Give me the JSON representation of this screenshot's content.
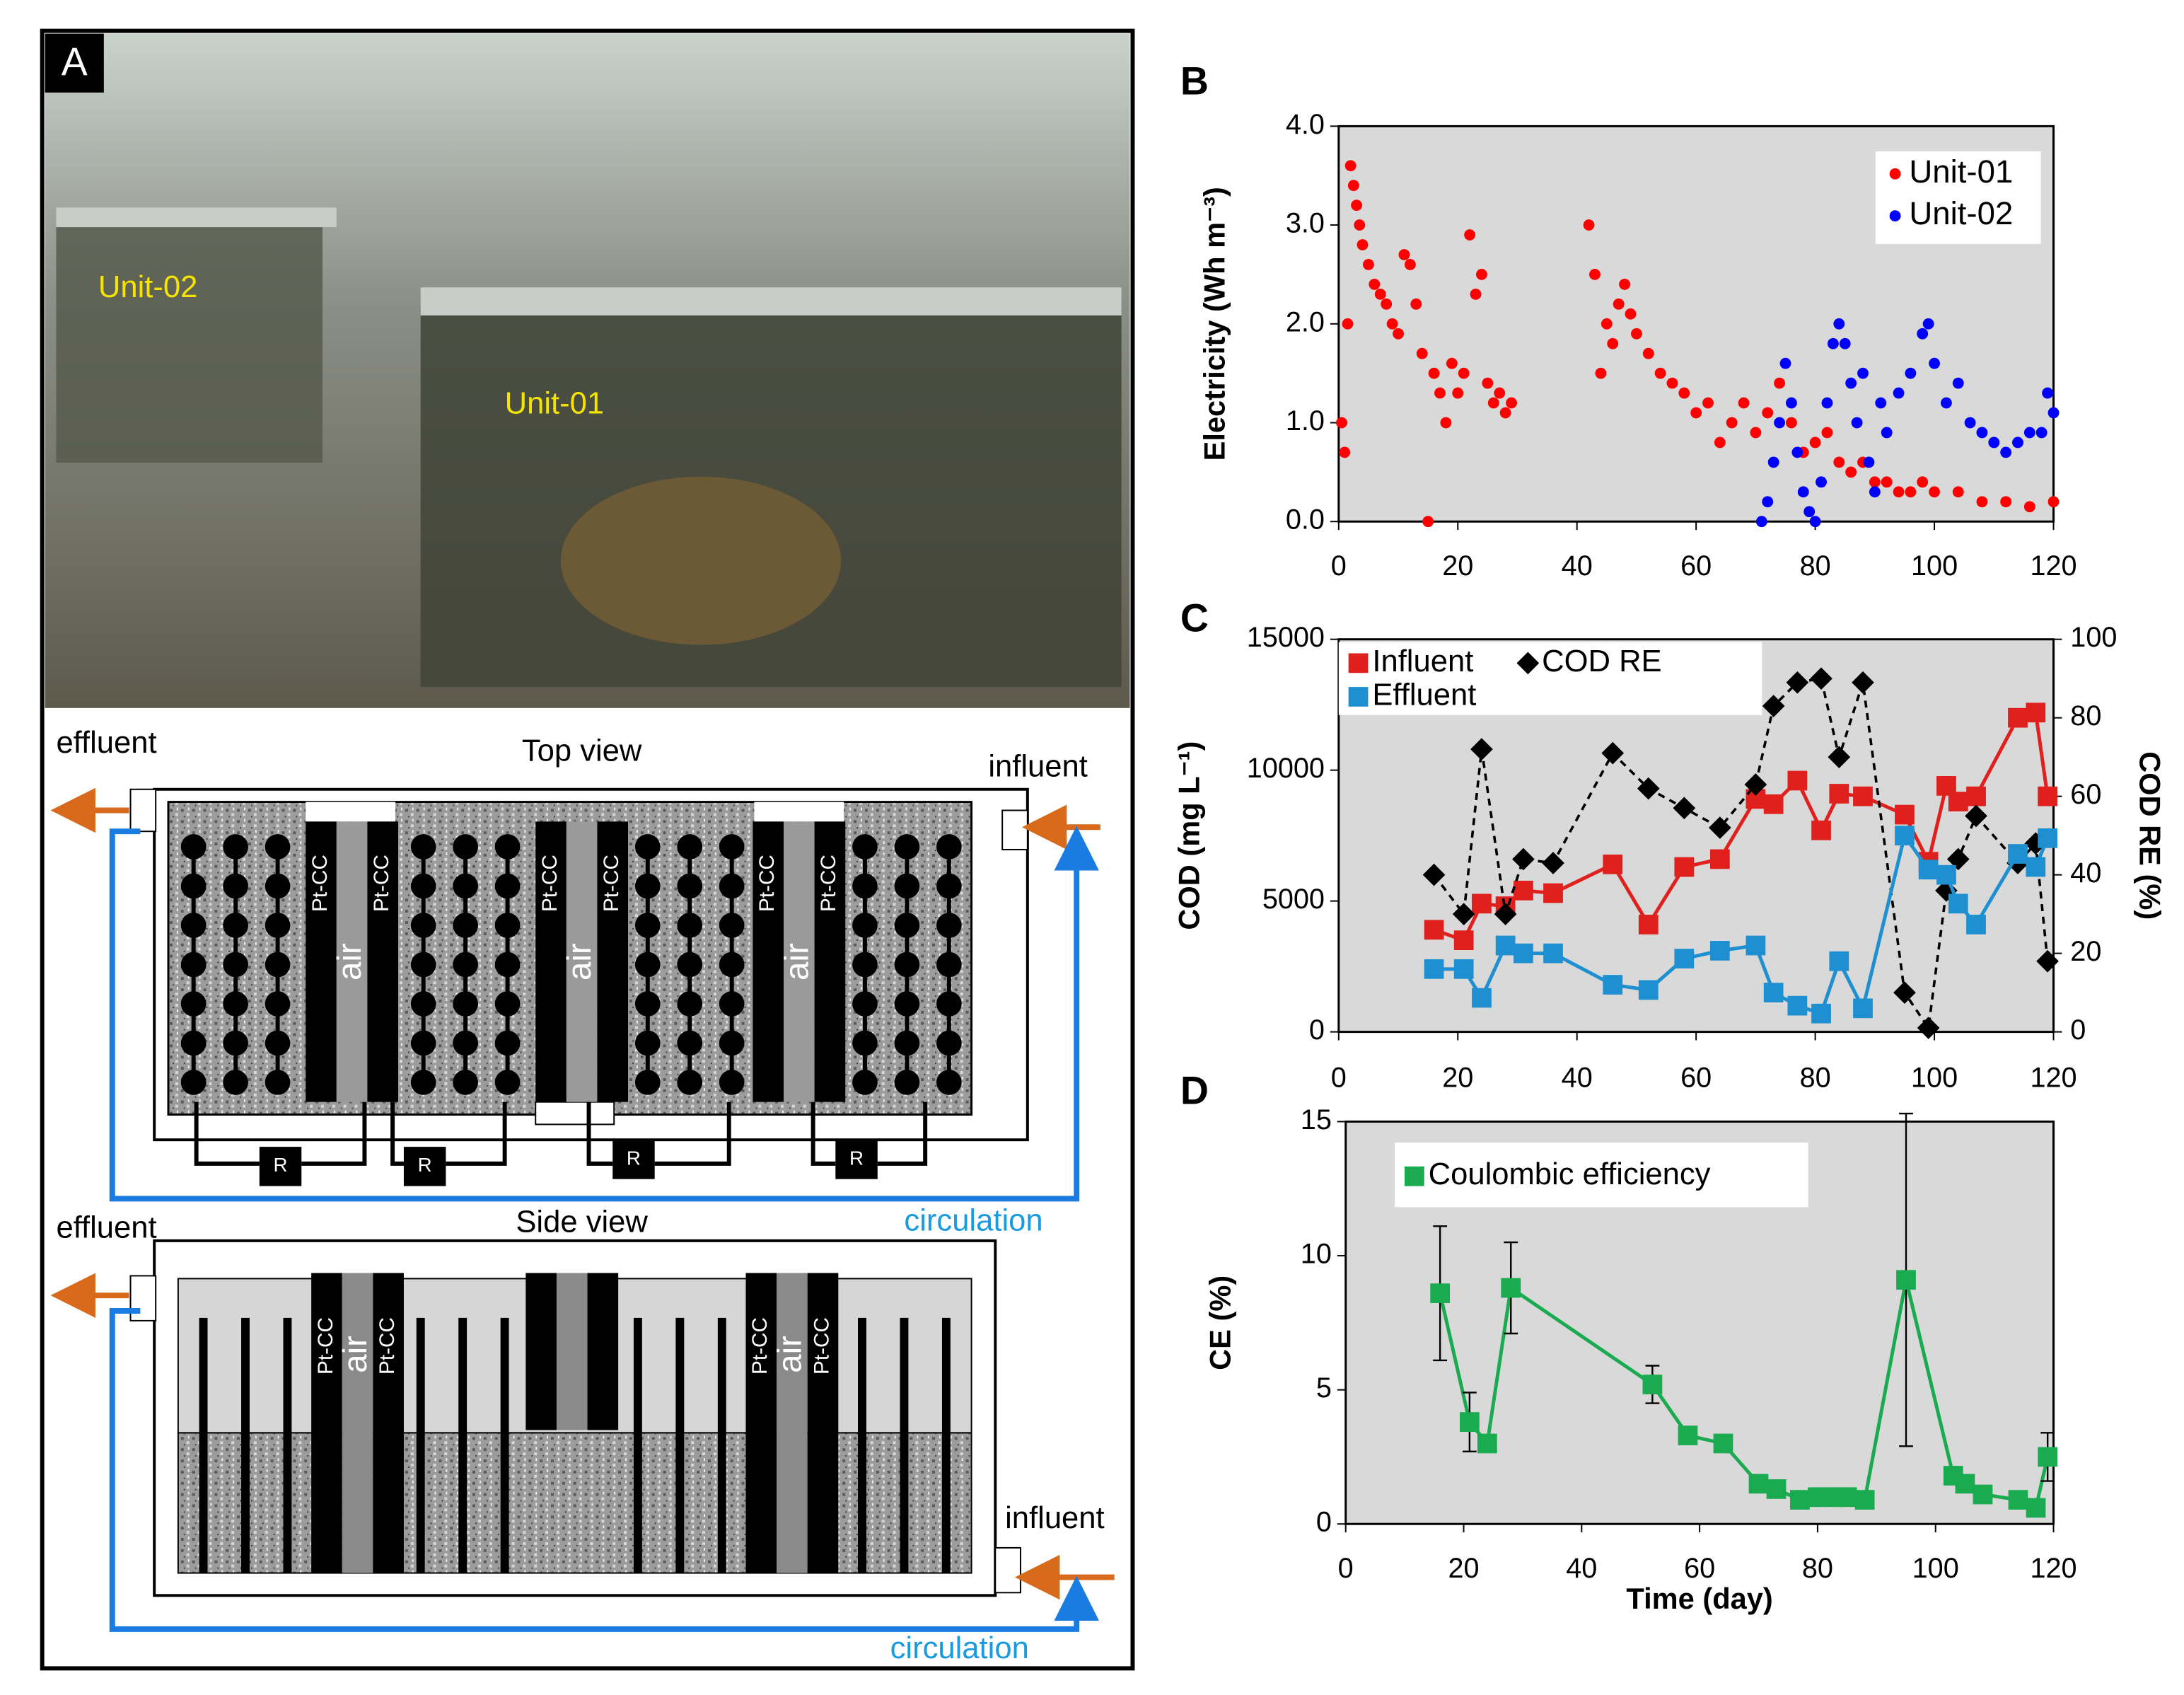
{
  "chart_data": [
    {
      "type": "scatter",
      "label": "B",
      "ylabel": "Electricity (Wh m⁻³)",
      "background": "#d9d9d9",
      "legend": "upper right",
      "xlim": [
        0,
        120
      ],
      "xticks": [
        0,
        20,
        40,
        60,
        80,
        100,
        120
      ],
      "ylim": [
        0,
        4
      ],
      "yticks": [
        {
          "value": 0,
          "label": "0.0"
        },
        {
          "value": 1,
          "label": "1.0"
        },
        {
          "value": 2,
          "label": "2.0"
        },
        {
          "value": 3,
          "label": "3.0"
        },
        {
          "value": 4,
          "label": "4.0"
        }
      ],
      "series": [
        {
          "name": "Unit-01",
          "color": "#ff0000",
          "x": [
            0.5,
            1,
            1.5,
            2,
            2.5,
            3,
            3.5,
            4,
            5,
            6,
            7,
            8,
            9,
            10,
            11,
            12,
            13,
            14,
            15,
            16,
            17,
            18,
            19,
            20,
            21,
            22,
            23,
            24,
            25,
            26,
            27,
            28,
            29,
            42,
            43,
            44,
            45,
            46,
            47,
            48,
            49,
            50,
            52,
            54,
            56,
            58,
            60,
            62,
            64,
            66,
            68,
            70,
            72,
            74,
            76,
            78,
            80,
            82,
            84,
            86,
            88,
            90,
            92,
            94,
            96,
            98,
            100,
            104,
            108,
            112,
            116,
            120
          ],
          "values": [
            1.0,
            0.7,
            2.0,
            3.6,
            3.4,
            3.2,
            3.0,
            2.8,
            2.6,
            2.4,
            2.3,
            2.2,
            2.0,
            1.9,
            2.7,
            2.6,
            2.2,
            1.7,
            0.0,
            1.5,
            1.3,
            1.0,
            1.6,
            1.3,
            1.5,
            2.9,
            2.3,
            2.5,
            1.4,
            1.2,
            1.3,
            1.1,
            1.2,
            3.0,
            2.5,
            1.5,
            2.0,
            1.8,
            2.2,
            2.4,
            2.1,
            1.9,
            1.7,
            1.5,
            1.4,
            1.3,
            1.1,
            1.2,
            0.8,
            1.0,
            1.2,
            0.9,
            1.1,
            1.4,
            1.0,
            0.7,
            0.8,
            0.9,
            0.6,
            0.5,
            0.6,
            0.4,
            0.4,
            0.3,
            0.3,
            0.4,
            0.3,
            0.3,
            0.2,
            0.2,
            0.15,
            0.2
          ]
        },
        {
          "name": "Unit-02",
          "color": "#0000ff",
          "x": [
            71,
            72,
            73,
            74,
            75,
            76,
            77,
            78,
            79,
            80,
            81,
            82,
            83,
            84,
            85,
            86,
            87,
            88,
            89,
            90,
            91,
            92,
            94,
            96,
            98,
            99,
            100,
            102,
            104,
            106,
            108,
            110,
            112,
            114,
            116,
            118,
            119,
            120
          ],
          "values": [
            0.0,
            0.2,
            0.6,
            1.0,
            1.6,
            1.2,
            0.7,
            0.3,
            0.1,
            0.0,
            0.4,
            1.2,
            1.8,
            2.0,
            1.8,
            1.4,
            1.0,
            1.5,
            0.6,
            0.3,
            1.2,
            0.9,
            1.3,
            1.5,
            1.9,
            2.0,
            1.6,
            1.2,
            1.4,
            1.0,
            0.9,
            0.8,
            0.7,
            0.8,
            0.9,
            0.9,
            1.3,
            1.1
          ]
        }
      ]
    },
    {
      "type": "line",
      "label": "C",
      "ylabel": "COD (mg L⁻¹)",
      "y2label": "COD RE (%)",
      "background": "#d9d9d9",
      "legend": "upper left",
      "xlim": [
        0,
        120
      ],
      "xticks": [
        0,
        20,
        40,
        60,
        80,
        100,
        120
      ],
      "ylim": [
        0,
        15000
      ],
      "yticks": [
        0,
        5000,
        10000,
        15000
      ],
      "y2lim": [
        0,
        100
      ],
      "y2ticks": [
        0,
        20,
        40,
        60,
        80,
        100
      ],
      "x": [
        16,
        21,
        24,
        28,
        31,
        36,
        46,
        52,
        58,
        64,
        70,
        73,
        77,
        81,
        84,
        88,
        95,
        99,
        102,
        104,
        107,
        114,
        117,
        119
      ],
      "series": [
        {
          "name": "Influent",
          "color": "#e0201c",
          "marker": "square",
          "values": [
            3900,
            3500,
            4900,
            4800,
            5400,
            5300,
            6400,
            4100,
            6300,
            6600,
            8900,
            8700,
            9600,
            7700,
            9100,
            9000,
            8300,
            6500,
            9400,
            8800,
            9000,
            12000,
            12200,
            9000
          ]
        },
        {
          "name": "COD RE",
          "color": "#000000",
          "marker": "diamond",
          "dash": true,
          "axis": "y2",
          "values": [
            40,
            30,
            72,
            30,
            44,
            43,
            71,
            62,
            57,
            52,
            63,
            83,
            89,
            90,
            70,
            89,
            10,
            1,
            36,
            44,
            55,
            43,
            48,
            18
          ]
        },
        {
          "name": "Effluent",
          "color": "#1e8fd0",
          "marker": "square",
          "values": [
            2400,
            2400,
            1300,
            3300,
            3000,
            3000,
            1800,
            1600,
            2800,
            3100,
            3300,
            1500,
            1000,
            700,
            2700,
            900,
            7500,
            6200,
            6000,
            4900,
            4100,
            6800,
            6300,
            7400
          ]
        }
      ]
    },
    {
      "type": "line",
      "label": "D",
      "ylabel": "CE (%)",
      "xlabel": "Time (day)",
      "background": "#d9d9d9",
      "legend": "upper left",
      "xlim": [
        0,
        120
      ],
      "xticks": [
        0,
        20,
        40,
        60,
        80,
        100,
        120
      ],
      "ylim": [
        0,
        15
      ],
      "yticks": [
        0,
        5,
        10,
        15
      ],
      "x": [
        16,
        21,
        24,
        28,
        52,
        58,
        64,
        70,
        73,
        77,
        80,
        83,
        85,
        88,
        95,
        103,
        105,
        108,
        114,
        117,
        119
      ],
      "series": [
        {
          "name": "Coulombic efficiency",
          "color": "#1aaa50",
          "marker": "square",
          "values": [
            8.6,
            3.8,
            3.0,
            8.8,
            5.2,
            3.3,
            3.0,
            1.5,
            1.3,
            0.9,
            1.0,
            1.0,
            1.0,
            0.9,
            9.1,
            1.8,
            1.5,
            1.1,
            0.9,
            0.6,
            2.5
          ],
          "errors": [
            2.5,
            1.1,
            0,
            1.7,
            0.7,
            0,
            0,
            0,
            0,
            0,
            0,
            0,
            0,
            0,
            6.2,
            0,
            0,
            0,
            0,
            0,
            0.9
          ]
        }
      ]
    }
  ],
  "panel_a": {
    "label": "A",
    "photo_labels": [
      "Unit-02",
      "Unit-01"
    ],
    "top_view": {
      "title": "Top view",
      "effluent": "effluent",
      "influent": "influent",
      "circulation": "circulation",
      "electrode": "Pt-CC",
      "air": "air",
      "resistor": "R"
    },
    "side_view": {
      "title": "Side view",
      "effluent": "effluent",
      "influent": "influent",
      "circulation": "circulation",
      "electrode": "Pt-CC",
      "air": "air"
    }
  }
}
